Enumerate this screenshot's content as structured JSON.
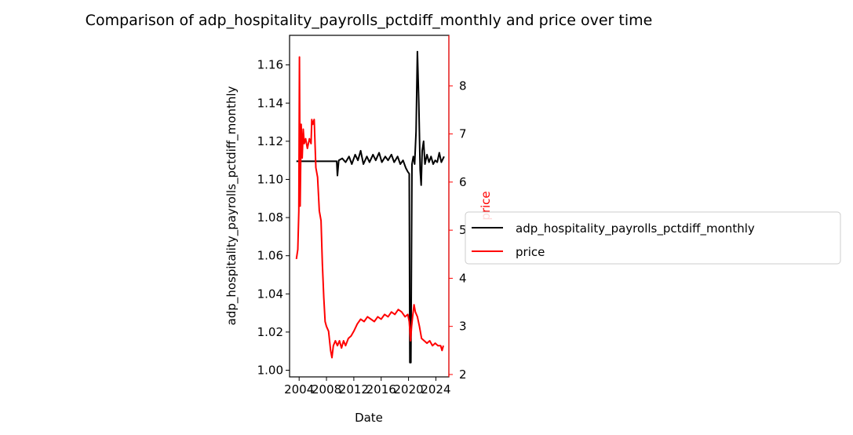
{
  "chart_data": {
    "type": "line",
    "title": "Comparison of adp_hospitality_payrolls_pctdiff_monthly and price over time",
    "xlabel": "Date",
    "ylabel_left": "adp_hospitality_payrolls_pctdiff_monthly",
    "ylabel_right": "price",
    "x_ticks": [
      "2004",
      "2008",
      "2012",
      "2016",
      "2020",
      "2024"
    ],
    "x_range": [
      2002.6,
      2025.9
    ],
    "y_left_ticks": [
      "1.00",
      "1.02",
      "1.04",
      "1.06",
      "1.08",
      "1.10",
      "1.12",
      "1.14",
      "1.16"
    ],
    "y_left_range": [
      0.9965,
      1.1755
    ],
    "y_right_ticks": [
      "2",
      "3",
      "4",
      "5",
      "6",
      "7",
      "8"
    ],
    "y_right_range": [
      1.95,
      9.05
    ],
    "grid": false,
    "legend_position": "right-outside",
    "series": [
      {
        "name": "adp_hospitality_payrolls_pctdiff_monthly",
        "color": "#000000",
        "axis": "left",
        "points": [
          [
            2003.6,
            1.1095
          ],
          [
            2009.5,
            1.1095
          ],
          [
            2009.6,
            1.102
          ],
          [
            2009.8,
            1.11
          ],
          [
            2010.3,
            1.111
          ],
          [
            2010.8,
            1.109
          ],
          [
            2011.3,
            1.112
          ],
          [
            2011.7,
            1.108
          ],
          [
            2012.2,
            1.113
          ],
          [
            2012.6,
            1.11
          ],
          [
            2013.0,
            1.115
          ],
          [
            2013.4,
            1.108
          ],
          [
            2013.9,
            1.112
          ],
          [
            2014.3,
            1.109
          ],
          [
            2014.8,
            1.113
          ],
          [
            2015.2,
            1.11
          ],
          [
            2015.7,
            1.114
          ],
          [
            2016.1,
            1.109
          ],
          [
            2016.6,
            1.112
          ],
          [
            2017.0,
            1.11
          ],
          [
            2017.5,
            1.113
          ],
          [
            2017.9,
            1.109
          ],
          [
            2018.4,
            1.112
          ],
          [
            2018.8,
            1.108
          ],
          [
            2019.2,
            1.11
          ],
          [
            2019.6,
            1.106
          ],
          [
            2019.9,
            1.104
          ],
          [
            2020.1,
            1.103
          ],
          [
            2020.2,
            1.004
          ],
          [
            2020.35,
            1.004
          ],
          [
            2020.5,
            1.108
          ],
          [
            2020.7,
            1.112
          ],
          [
            2020.9,
            1.108
          ],
          [
            2021.1,
            1.125
          ],
          [
            2021.3,
            1.167
          ],
          [
            2021.5,
            1.14
          ],
          [
            2021.7,
            1.105
          ],
          [
            2021.85,
            1.097
          ],
          [
            2022.0,
            1.115
          ],
          [
            2022.2,
            1.12
          ],
          [
            2022.4,
            1.108
          ],
          [
            2022.7,
            1.113
          ],
          [
            2023.0,
            1.109
          ],
          [
            2023.3,
            1.112
          ],
          [
            2023.6,
            1.108
          ],
          [
            2023.9,
            1.11
          ],
          [
            2024.2,
            1.109
          ],
          [
            2024.5,
            1.114
          ],
          [
            2024.8,
            1.109
          ],
          [
            2025.2,
            1.112
          ]
        ]
      },
      {
        "name": "price",
        "color": "#ff0000",
        "axis": "right",
        "points": [
          [
            2003.6,
            4.4
          ],
          [
            2003.8,
            4.6
          ],
          [
            2003.95,
            5.4
          ],
          [
            2004.05,
            8.6
          ],
          [
            2004.15,
            5.5
          ],
          [
            2004.3,
            7.2
          ],
          [
            2004.45,
            6.5
          ],
          [
            2004.6,
            7.1
          ],
          [
            2004.75,
            6.8
          ],
          [
            2004.95,
            6.9
          ],
          [
            2005.2,
            6.7
          ],
          [
            2005.5,
            6.9
          ],
          [
            2005.75,
            6.8
          ],
          [
            2005.85,
            7.3
          ],
          [
            2006.0,
            7.2
          ],
          [
            2006.2,
            7.3
          ],
          [
            2006.45,
            6.3
          ],
          [
            2006.7,
            6.1
          ],
          [
            2006.95,
            5.4
          ],
          [
            2007.2,
            5.2
          ],
          [
            2007.4,
            4.3
          ],
          [
            2007.6,
            3.6
          ],
          [
            2007.8,
            3.1
          ],
          [
            2008.0,
            3.0
          ],
          [
            2008.3,
            2.9
          ],
          [
            2008.6,
            2.5
          ],
          [
            2008.8,
            2.35
          ],
          [
            2009.0,
            2.6
          ],
          [
            2009.3,
            2.7
          ],
          [
            2009.6,
            2.6
          ],
          [
            2009.9,
            2.7
          ],
          [
            2010.2,
            2.55
          ],
          [
            2010.5,
            2.7
          ],
          [
            2010.8,
            2.6
          ],
          [
            2011.2,
            2.75
          ],
          [
            2011.6,
            2.8
          ],
          [
            2012.0,
            2.9
          ],
          [
            2012.5,
            3.05
          ],
          [
            2013.0,
            3.15
          ],
          [
            2013.5,
            3.1
          ],
          [
            2014.0,
            3.2
          ],
          [
            2014.5,
            3.15
          ],
          [
            2015.0,
            3.1
          ],
          [
            2015.5,
            3.2
          ],
          [
            2016.0,
            3.15
          ],
          [
            2016.5,
            3.25
          ],
          [
            2017.0,
            3.2
          ],
          [
            2017.5,
            3.3
          ],
          [
            2018.0,
            3.25
          ],
          [
            2018.5,
            3.35
          ],
          [
            2019.0,
            3.3
          ],
          [
            2019.5,
            3.2
          ],
          [
            2019.9,
            3.25
          ],
          [
            2020.1,
            3.1
          ],
          [
            2020.3,
            2.7
          ],
          [
            2020.45,
            3.0
          ],
          [
            2020.6,
            3.2
          ],
          [
            2020.8,
            3.45
          ],
          [
            2021.0,
            3.3
          ],
          [
            2021.3,
            3.2
          ],
          [
            2021.6,
            3.0
          ],
          [
            2021.9,
            2.75
          ],
          [
            2022.3,
            2.7
          ],
          [
            2022.7,
            2.65
          ],
          [
            2023.1,
            2.7
          ],
          [
            2023.5,
            2.6
          ],
          [
            2023.9,
            2.65
          ],
          [
            2024.3,
            2.6
          ],
          [
            2024.7,
            2.6
          ],
          [
            2024.9,
            2.5
          ],
          [
            2025.1,
            2.6
          ]
        ]
      }
    ]
  }
}
